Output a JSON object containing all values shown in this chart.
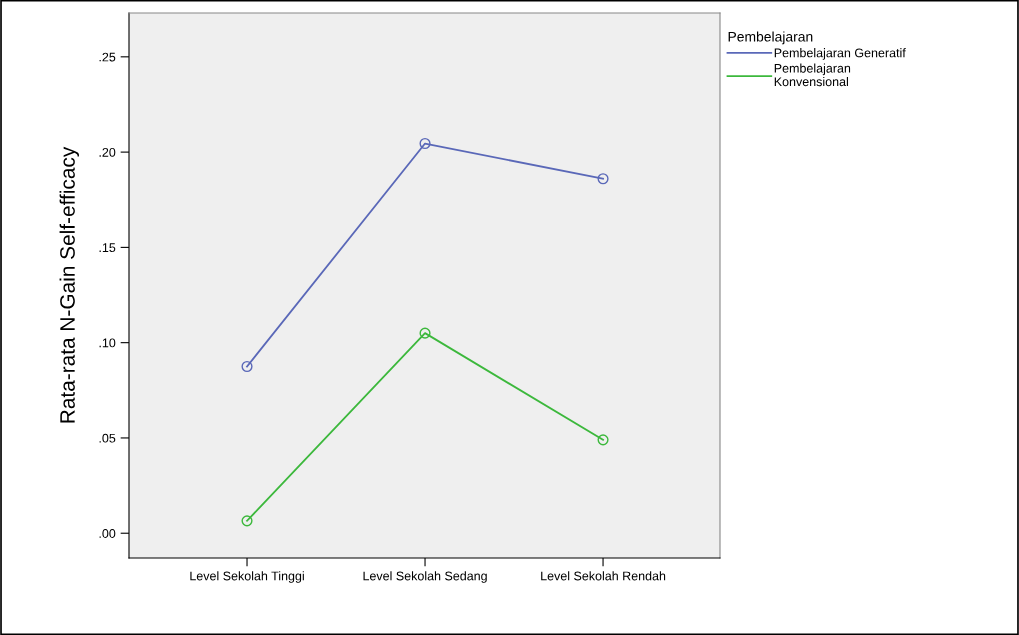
{
  "chart_data": {
    "type": "line",
    "ylabel": "Rata-rata N-Gain Self-efficacy",
    "legend_title": "Pembelajaran",
    "categories": [
      "Level Sekolah Tinggi",
      "Level Sekolah Sedang",
      "Level Sekolah Rendah"
    ],
    "series": [
      {
        "name": "Pembelajaran Generatif",
        "color": "#5a68b8",
        "values": [
          0.0875,
          0.2045,
          0.186
        ]
      },
      {
        "name": "Pembelajaran\nKonvensional",
        "color": "#3cb83c",
        "values": [
          0.0065,
          0.105,
          0.049
        ]
      }
    ],
    "ylim": [
      -0.013,
      0.273
    ],
    "yticks": [
      {
        "value": 0,
        "label": ".00"
      },
      {
        "value": 0.05,
        "label": ".05"
      },
      {
        "value": 0.1,
        "label": ".10"
      },
      {
        "value": 0.15,
        "label": ".15"
      },
      {
        "value": 0.2,
        "label": ".20"
      },
      {
        "value": 0.25,
        "label": ".25"
      }
    ],
    "marker": "circle",
    "grid": false,
    "legend": "top right"
  }
}
